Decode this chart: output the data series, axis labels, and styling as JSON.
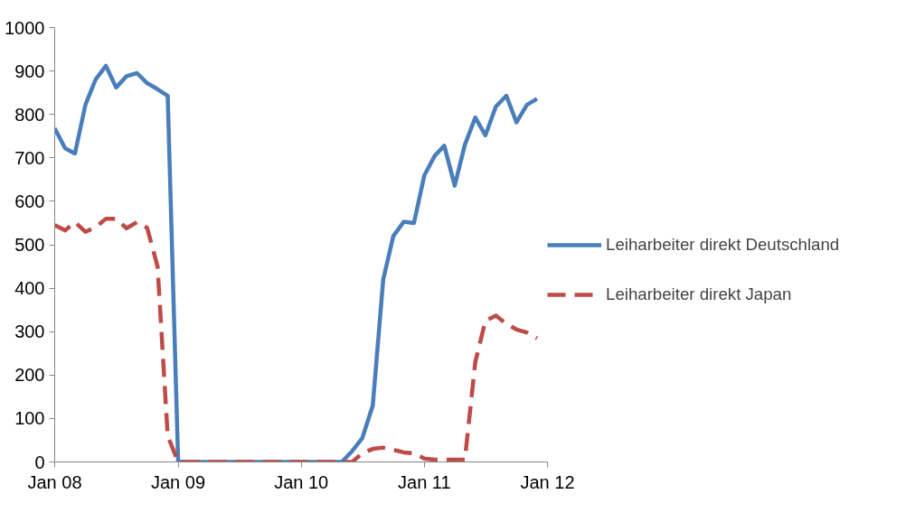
{
  "chart_data": {
    "type": "line",
    "x": [
      "2008-01",
      "2008-02",
      "2008-03",
      "2008-04",
      "2008-05",
      "2008-06",
      "2008-07",
      "2008-08",
      "2008-09",
      "2008-10",
      "2008-11",
      "2008-12",
      "2009-01",
      "2009-02",
      "2009-03",
      "2009-04",
      "2009-05",
      "2009-06",
      "2009-07",
      "2009-08",
      "2009-09",
      "2009-10",
      "2009-11",
      "2009-12",
      "2010-01",
      "2010-02",
      "2010-03",
      "2010-04",
      "2010-05",
      "2010-06",
      "2010-07",
      "2010-08",
      "2010-09",
      "2010-10",
      "2010-11",
      "2010-12",
      "2011-01",
      "2011-02",
      "2011-03",
      "2011-04",
      "2011-05",
      "2011-06",
      "2011-07",
      "2011-08",
      "2011-09",
      "2011-10",
      "2011-11",
      "2011-12"
    ],
    "series": [
      {
        "name": "Leiharbeiter direkt Deutschland",
        "color": "#4a7ebb",
        "line_style": "solid",
        "values": [
          768,
          722,
          710,
          822,
          880,
          912,
          862,
          888,
          895,
          872,
          858,
          843,
          0,
          0,
          0,
          0,
          0,
          0,
          0,
          0,
          0,
          0,
          0,
          0,
          0,
          0,
          0,
          0,
          0,
          25,
          55,
          130,
          420,
          520,
          553,
          550,
          660,
          705,
          728,
          636,
          730,
          793,
          752,
          818,
          843,
          782,
          822,
          836
        ]
      },
      {
        "name": "Leiharbeiter direkt Japan",
        "color": "#be4b48",
        "line_style": "dashed",
        "values": [
          545,
          533,
          552,
          530,
          540,
          560,
          560,
          538,
          552,
          539,
          450,
          60,
          0,
          0,
          0,
          0,
          0,
          0,
          0,
          0,
          0,
          0,
          0,
          0,
          0,
          0,
          0,
          0,
          0,
          0,
          20,
          30,
          33,
          28,
          22,
          20,
          8,
          5,
          5,
          5,
          5,
          230,
          325,
          337,
          318,
          305,
          298,
          285
        ]
      }
    ],
    "xlim": [
      "2008-01",
      "2012-01"
    ],
    "xticks": [
      {
        "value": "2008-01",
        "label": "Jan 08"
      },
      {
        "value": "2009-01",
        "label": "Jan 09"
      },
      {
        "value": "2010-01",
        "label": "Jan 10"
      },
      {
        "value": "2011-01",
        "label": "Jan 11"
      },
      {
        "value": "2012-01",
        "label": "Jan 12"
      }
    ],
    "ylim": [
      0,
      1000
    ],
    "yticks": [
      0,
      100,
      200,
      300,
      400,
      500,
      600,
      700,
      800,
      900,
      1000
    ],
    "grid": false,
    "legend": "right",
    "marker": "none"
  }
}
